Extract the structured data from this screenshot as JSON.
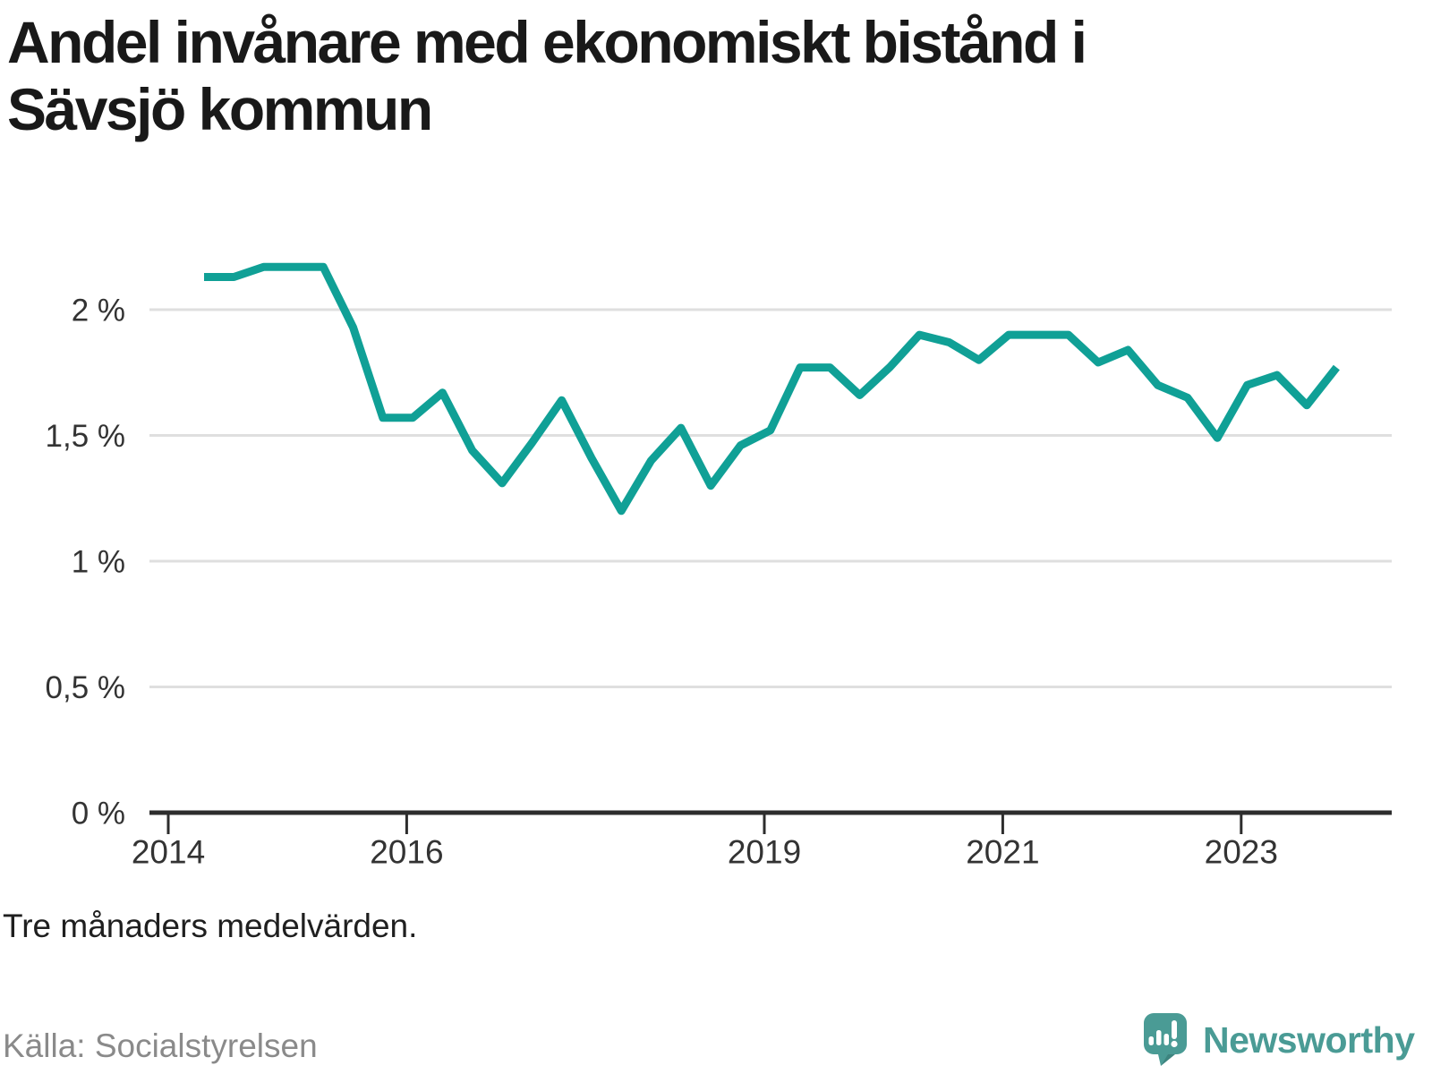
{
  "title": "Andel invånare med ekonomiskt bistånd i\nSävsjö kommun",
  "footnote": "Tre månaders medelvärden.",
  "source": "Källa: Socialstyrelsen",
  "brand": {
    "name": "Newsworthy"
  },
  "colors": {
    "line": "#10a096",
    "grid": "#dfdfdf",
    "axis": "#2d2d2d",
    "tick_text": "#333333",
    "title_text": "#191919",
    "source_text": "#8a8a8a",
    "brand_teal": "#4a9b95",
    "brand_teal_dark": "#3d847f"
  },
  "chart_data": {
    "type": "line",
    "title": "Andel invånare med ekonomiskt bistånd i Sävsjö kommun",
    "unit": "%",
    "legend": "none",
    "grid": "horizontal",
    "x_ticks": [
      2014,
      2016,
      2019,
      2021,
      2023
    ],
    "y_ticks": [
      {
        "value": 0,
        "label": "0 %"
      },
      {
        "value": 0.5,
        "label": "0,5 %"
      },
      {
        "value": 1,
        "label": "1 %"
      },
      {
        "value": 1.5,
        "label": "1,5 %"
      },
      {
        "value": 2,
        "label": "2 %"
      }
    ],
    "x_range_years": [
      2013.85,
      2024.28
    ],
    "y_range": [
      0,
      2.2
    ],
    "x_start_year": 2014.3,
    "x_step_years": 0.25,
    "values": [
      2.13,
      2.13,
      2.17,
      2.17,
      2.17,
      1.93,
      1.57,
      1.57,
      1.67,
      1.44,
      1.31,
      1.47,
      1.64,
      1.41,
      1.2,
      1.4,
      1.53,
      1.3,
      1.46,
      1.52,
      1.77,
      1.77,
      1.66,
      1.77,
      1.9,
      1.87,
      1.8,
      1.9,
      1.9,
      1.9,
      1.79,
      1.84,
      1.7,
      1.65,
      1.49,
      1.7,
      1.74,
      1.62,
      1.77
    ]
  }
}
